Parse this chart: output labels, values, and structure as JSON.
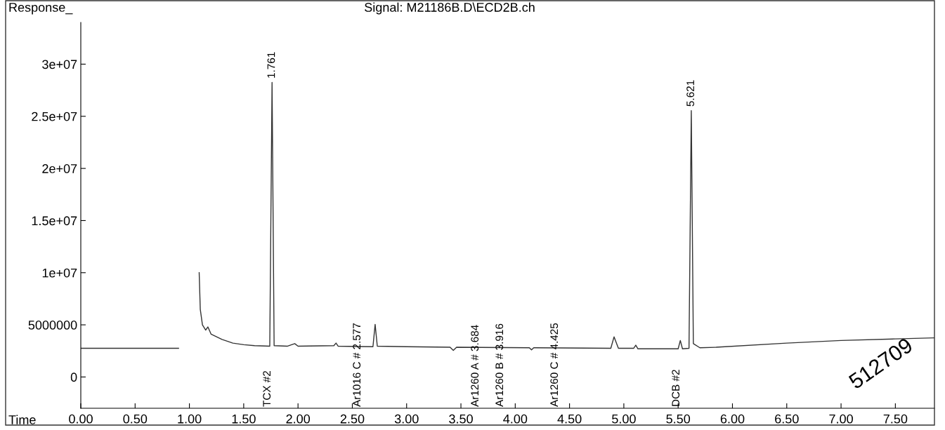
{
  "chart_data": {
    "type": "line",
    "title": "Signal: M21186B.D\\ECD2B.ch",
    "xlabel": "Time",
    "ylabel": "Response_",
    "x": [
      0,
      0.9,
      0.92,
      1.07,
      1.09,
      1.1,
      1.12,
      1.15,
      1.17,
      1.2,
      1.3,
      1.4,
      1.5,
      1.6,
      1.74,
      1.761,
      1.78,
      1.9,
      1.97,
      2.0,
      2.33,
      2.35,
      2.37,
      2.69,
      2.71,
      2.73,
      3.0,
      3.4,
      3.43,
      3.46,
      4.13,
      4.15,
      4.17,
      4.88,
      4.91,
      4.95,
      5.09,
      5.11,
      5.13,
      5.5,
      5.52,
      5.54,
      5.6,
      5.621,
      5.64,
      5.7,
      5.85,
      6.5,
      7.0,
      7.5,
      7.86
    ],
    "series": [
      {
        "color": "#333333",
        "values": [
          2750000,
          2750000,
          null,
          null,
          10000000,
          6500000,
          5000000,
          4500000,
          4800000,
          4100000,
          3600000,
          3250000,
          3100000,
          3000000,
          2950000,
          28250000,
          3000000,
          2950000,
          3200000,
          2950000,
          3000000,
          3250000,
          2950000,
          2900000,
          5050000,
          2950000,
          2900000,
          2850000,
          2550000,
          2850000,
          2800000,
          2600000,
          2800000,
          2750000,
          3850000,
          2750000,
          2750000,
          3050000,
          2700000,
          2700000,
          3500000,
          2700000,
          2750000,
          25550000,
          3200000,
          2800000,
          2850000,
          3250000,
          3500000,
          3650000,
          3750000
        ]
      }
    ],
    "xlim": [
      0,
      7.86
    ],
    "ylim": [
      -3000000,
      34000000
    ],
    "xticks": [
      {
        "value": 0,
        "label": "0.00"
      },
      {
        "value": 0.5,
        "label": "0.50"
      },
      {
        "value": 1,
        "label": "1.00"
      },
      {
        "value": 1.5,
        "label": "1.50"
      },
      {
        "value": 2,
        "label": "2.00"
      },
      {
        "value": 2.5,
        "label": "2.50"
      },
      {
        "value": 3,
        "label": "3.00"
      },
      {
        "value": 3.5,
        "label": "3.50"
      },
      {
        "value": 4,
        "label": "4.00"
      },
      {
        "value": 4.5,
        "label": "4.50"
      },
      {
        "value": 5,
        "label": "5.00"
      },
      {
        "value": 5.5,
        "label": "5.50"
      },
      {
        "value": 6,
        "label": "6.00"
      },
      {
        "value": 6.5,
        "label": "6.50"
      },
      {
        "value": 7,
        "label": "7.00"
      },
      {
        "value": 7.5,
        "label": "7.50"
      }
    ],
    "yticks": [
      0,
      5000000,
      {
        "value": 10000000,
        "label": "1e+07"
      },
      {
        "value": 15000000,
        "label": "1.5e+07"
      },
      {
        "value": 20000000,
        "label": "2e+07"
      },
      {
        "value": 25000000,
        "label": "2.5e+07"
      },
      {
        "value": 30000000,
        "label": "3e+07"
      }
    ],
    "grid": false,
    "legend": false,
    "annotations": [
      {
        "text": "1.761",
        "x": 1.761,
        "y": 28250000
      },
      {
        "text": "5.621",
        "x": 5.621,
        "y": 25550000
      },
      "TCX #2",
      "Ar1016 C # 2.577",
      "Ar1260 A # 3.684",
      "Ar1260 B # 3.916",
      "Ar1260 C # 4.425",
      "DCB #2",
      "512709"
    ]
  }
}
